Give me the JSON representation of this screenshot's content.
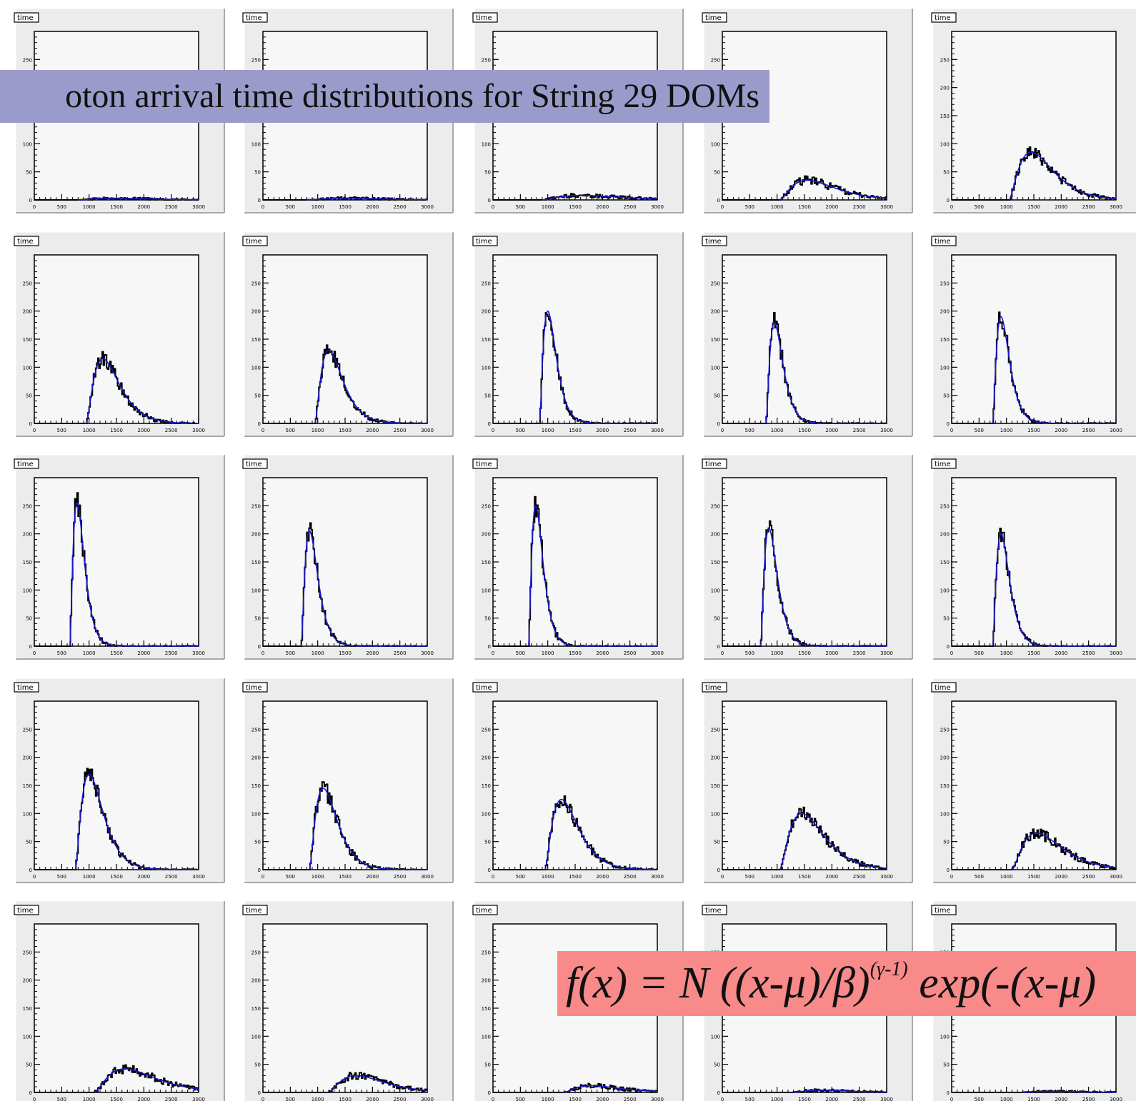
{
  "title_banner": "oton arrival time distributions for String 29 DOMs",
  "formula": {
    "main": "f(x) = N ((x-μ)/β)",
    "exponent": "(γ-1)",
    "tail": " exp(-(x-μ)"
  },
  "colors": {
    "pad_bg": "#ececec",
    "frame_bg": "#f7f7f7",
    "histogram": "#000000",
    "fit": "#1a1acc",
    "title_banner_bg": "#9b9bcb",
    "formula_banner_bg": "#f98a8a"
  },
  "chart_data": {
    "type": "line",
    "layout": "5x5 grid of histogram panels",
    "panel_title": "time",
    "xlim": [
      0,
      3000
    ],
    "ylim": [
      0,
      300
    ],
    "x_ticks": [
      0,
      500,
      1000,
      1500,
      2000,
      2500,
      3000
    ],
    "y_ticks": [
      0,
      50,
      100,
      150,
      200,
      250
    ],
    "x_tick_labels": [
      "0",
      "500",
      "1000",
      "1500",
      "2000",
      "2500",
      "3000"
    ],
    "y_tick_labels": [
      "0",
      "50",
      "100",
      "150",
      "200",
      "250"
    ],
    "series_kinds": [
      "histogram",
      "gamma fit"
    ],
    "panels": [
      {
        "start": 800,
        "peak_x": 1450,
        "peak_y": 3
      },
      {
        "start": 800,
        "peak_x": 1500,
        "peak_y": 3
      },
      {
        "start": 900,
        "peak_x": 1600,
        "peak_y": 8
      },
      {
        "start": 1050,
        "peak_x": 1550,
        "peak_y": 35
      },
      {
        "start": 1050,
        "peak_x": 1450,
        "peak_y": 85
      },
      {
        "start": 950,
        "peak_x": 1250,
        "peak_y": 115
      },
      {
        "start": 950,
        "peak_x": 1200,
        "peak_y": 130
      },
      {
        "start": 850,
        "peak_x": 1000,
        "peak_y": 200
      },
      {
        "start": 800,
        "peak_x": 950,
        "peak_y": 180
      },
      {
        "start": 750,
        "peak_x": 900,
        "peak_y": 190
      },
      {
        "start": 650,
        "peak_x": 780,
        "peak_y": 255
      },
      {
        "start": 700,
        "peak_x": 850,
        "peak_y": 205
      },
      {
        "start": 650,
        "peak_x": 780,
        "peak_y": 250
      },
      {
        "start": 700,
        "peak_x": 850,
        "peak_y": 210
      },
      {
        "start": 750,
        "peak_x": 900,
        "peak_y": 200
      },
      {
        "start": 750,
        "peak_x": 1000,
        "peak_y": 170
      },
      {
        "start": 850,
        "peak_x": 1100,
        "peak_y": 145
      },
      {
        "start": 950,
        "peak_x": 1250,
        "peak_y": 125
      },
      {
        "start": 1050,
        "peak_x": 1450,
        "peak_y": 100
      },
      {
        "start": 1100,
        "peak_x": 1550,
        "peak_y": 65
      },
      {
        "start": 1100,
        "peak_x": 1650,
        "peak_y": 42
      },
      {
        "start": 1200,
        "peak_x": 1700,
        "peak_y": 30
      },
      {
        "start": 1300,
        "peak_x": 1800,
        "peak_y": 12
      },
      {
        "start": 1300,
        "peak_x": 1800,
        "peak_y": 4
      },
      {
        "start": 1300,
        "peak_x": 1800,
        "peak_y": 2
      }
    ]
  }
}
